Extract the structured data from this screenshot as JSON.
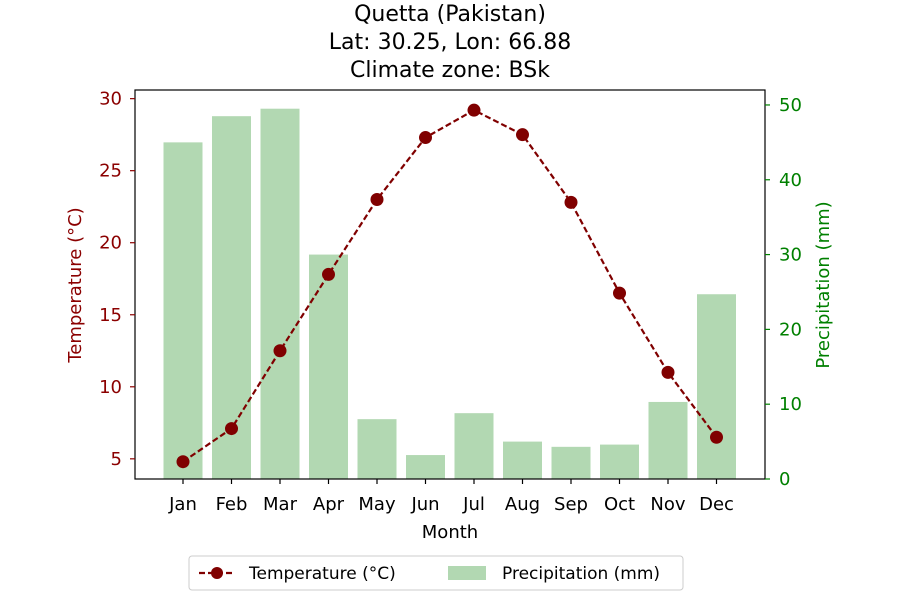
{
  "chart_data": {
    "type": "bar+line",
    "title_lines": [
      "Quetta (Pakistan)",
      "Lat: 30.25, Lon: 66.88",
      "Climate zone: BSk"
    ],
    "xlabel": "Month",
    "ylabel_left": "Temperature (°C)",
    "ylabel_right": "Precipitation (mm)",
    "categories": [
      "Jan",
      "Feb",
      "Mar",
      "Apr",
      "May",
      "Jun",
      "Jul",
      "Aug",
      "Sep",
      "Oct",
      "Nov",
      "Dec"
    ],
    "temperature": {
      "name": "Temperature (°C)",
      "values": [
        4.8,
        7.1,
        12.5,
        17.8,
        23.0,
        27.3,
        29.2,
        27.5,
        22.8,
        16.5,
        11.0,
        6.5
      ],
      "color": "#800000",
      "style": "dashed line with circle markers"
    },
    "precipitation": {
      "name": "Precipitation (mm)",
      "values": [
        45.0,
        48.5,
        49.5,
        30.0,
        8.0,
        3.2,
        8.8,
        5.0,
        4.3,
        4.6,
        10.3,
        24.7
      ],
      "color": "#b2d8b2"
    },
    "left_ticks": [
      5,
      10,
      15,
      20,
      25,
      30
    ],
    "right_ticks": [
      0,
      10,
      20,
      30,
      40,
      50
    ],
    "ylim_left": [
      3.6,
      30.6
    ],
    "ylim_right": [
      0,
      52
    ],
    "left_axis_color": "#8b0000",
    "right_axis_color": "#008000",
    "legend": {
      "placement": "bottom-center, below plot",
      "items": [
        "Temperature (°C)",
        "Precipitation (mm)"
      ]
    }
  }
}
